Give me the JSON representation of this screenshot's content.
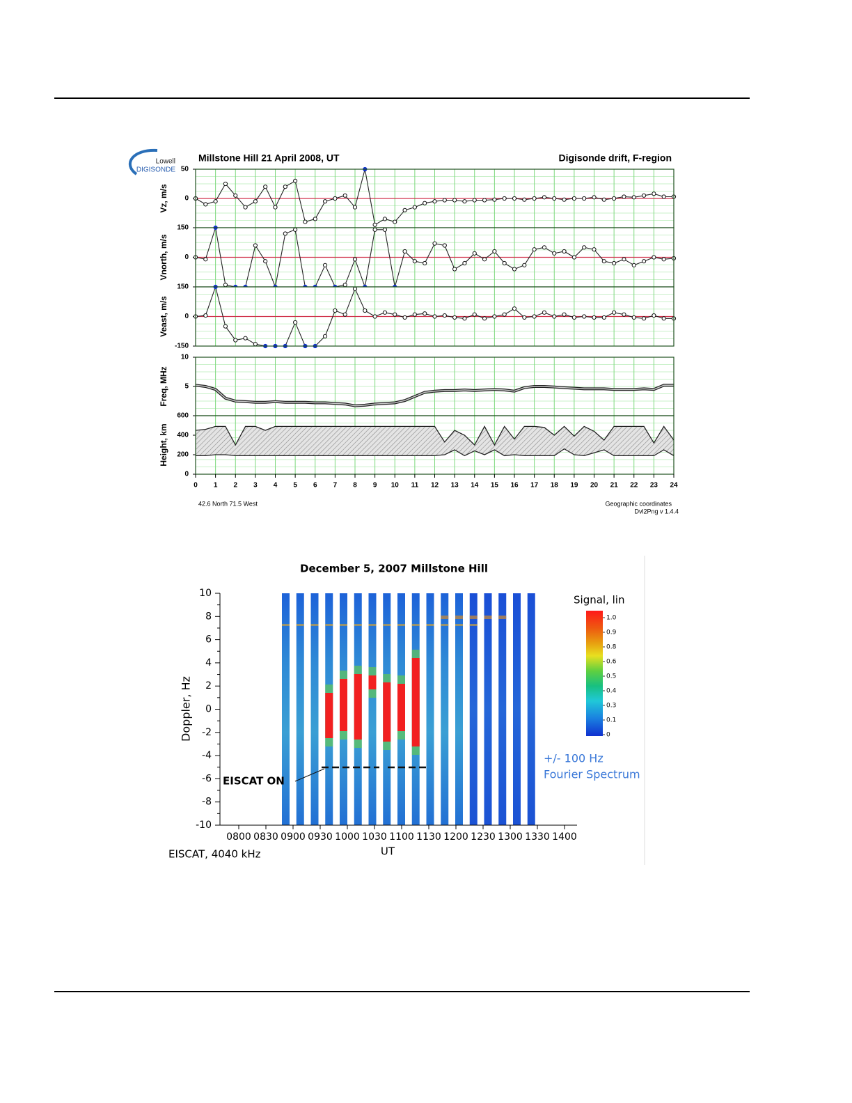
{
  "chart_data": [
    {
      "type": "multi-panel",
      "logo": {
        "top": "Lowell",
        "bottom": "DIGISONDE"
      },
      "title": "Millstone Hill  21 April 2008, UT",
      "subtitle": "Digisonde drift, F-region",
      "x": [
        0,
        0.5,
        1,
        1.5,
        2,
        2.5,
        3,
        3.5,
        4,
        4.5,
        5,
        5.5,
        6,
        6.5,
        7,
        7.5,
        8,
        8.5,
        9,
        9.5,
        10,
        10.5,
        11,
        11.5,
        12,
        12.5,
        13,
        13.5,
        14,
        14.5,
        15,
        15.5,
        16,
        16.5,
        17,
        17.5,
        18,
        18.5,
        19,
        19.5,
        20,
        20.5,
        21,
        21.5,
        22,
        22.5,
        23,
        23.5,
        24
      ],
      "xlim": [
        0,
        24
      ],
      "xticks": [
        0,
        1,
        2,
        3,
        4,
        5,
        6,
        7,
        8,
        9,
        10,
        11,
        12,
        13,
        14,
        15,
        16,
        17,
        18,
        19,
        20,
        21,
        22,
        23,
        24
      ],
      "grid": true,
      "panels": [
        {
          "type": "line",
          "markers": true,
          "ylabel": "Vz, m/s",
          "ylim": [
            -50,
            50
          ],
          "yticks": [
            50,
            0
          ],
          "values": [
            0,
            -10,
            -5,
            25,
            5,
            -15,
            -5,
            20,
            -15,
            20,
            30,
            -40,
            -35,
            -5,
            0,
            5,
            -15,
            50,
            -45,
            -35,
            -40,
            -20,
            -15,
            -8,
            -5,
            -3,
            -3,
            -5,
            -3,
            -3,
            -2,
            0,
            0,
            -2,
            0,
            2,
            0,
            -2,
            0,
            0,
            2,
            -2,
            0,
            3,
            2,
            5,
            8,
            3,
            3
          ]
        },
        {
          "type": "line",
          "markers": true,
          "ylabel": "Vnorth, m/s",
          "ylim": [
            -150,
            150
          ],
          "yticks": [
            150,
            0
          ],
          "values": [
            0,
            -10,
            150,
            -140,
            -150,
            -150,
            60,
            -20,
            -150,
            120,
            140,
            -150,
            -150,
            -40,
            -150,
            -140,
            -10,
            -150,
            140,
            140,
            -150,
            30,
            -20,
            -30,
            70,
            60,
            -60,
            -30,
            20,
            -10,
            30,
            -30,
            -60,
            -40,
            40,
            50,
            20,
            30,
            0,
            50,
            40,
            -20,
            -30,
            -10,
            -40,
            -20,
            0,
            -10,
            -5
          ]
        },
        {
          "type": "line",
          "markers": true,
          "ylabel": "Veast, m/s",
          "ylim": [
            -150,
            150
          ],
          "yticks": [
            150,
            0,
            -150
          ],
          "values": [
            0,
            5,
            150,
            -50,
            -120,
            -110,
            -140,
            -150,
            -150,
            -150,
            -30,
            -150,
            -150,
            -100,
            30,
            10,
            140,
            30,
            0,
            20,
            10,
            -5,
            10,
            15,
            0,
            5,
            -5,
            -10,
            10,
            -10,
            0,
            10,
            40,
            -5,
            0,
            20,
            0,
            10,
            -5,
            0,
            -5,
            -5,
            20,
            10,
            -5,
            -10,
            5,
            -10,
            -10
          ]
        },
        {
          "type": "line",
          "markers": false,
          "ylabel": "Freq, MHz",
          "ylim": [
            0,
            10
          ],
          "yticks": [
            10,
            5
          ],
          "values": [
            5.2,
            5,
            4.5,
            3,
            2.5,
            2.4,
            2.3,
            2.3,
            2.4,
            2.3,
            2.3,
            2.3,
            2.2,
            2.2,
            2.1,
            2,
            1.7,
            1.8,
            2,
            2.1,
            2.2,
            2.6,
            3.3,
            4,
            4.2,
            4.3,
            4.3,
            4.4,
            4.3,
            4.4,
            4.5,
            4.4,
            4.2,
            4.8,
            5,
            5,
            4.9,
            4.8,
            4.7,
            4.6,
            4.6,
            4.6,
            4.5,
            4.5,
            4.5,
            4.6,
            4.5,
            5.2,
            5.2
          ]
        },
        {
          "type": "band",
          "ylabel": "Height, km",
          "ylim": [
            0,
            600
          ],
          "yticks": [
            600,
            400,
            200,
            0
          ],
          "series": [
            {
              "values": [
                190,
                190,
                200,
                200,
                190,
                190,
                190,
                190,
                190,
                190,
                190,
                190,
                190,
                190,
                190,
                190,
                190,
                190,
                190,
                190,
                190,
                190,
                190,
                190,
                190,
                200,
                250,
                190,
                240,
                200,
                250,
                190,
                200,
                190,
                190,
                190,
                190,
                260,
                200,
                190,
                220,
                250,
                190,
                190,
                190,
                190,
                190,
                250,
                190
              ]
            },
            {
              "values": [
                450,
                460,
                490,
                490,
                300,
                490,
                490,
                450,
                490,
                490,
                490,
                490,
                490,
                490,
                490,
                490,
                490,
                490,
                490,
                490,
                490,
                490,
                490,
                490,
                490,
                330,
                450,
                400,
                300,
                490,
                300,
                490,
                360,
                490,
                490,
                480,
                400,
                490,
                390,
                490,
                440,
                350,
                490,
                490,
                490,
                490,
                320,
                490,
                350
              ]
            }
          ]
        }
      ],
      "footer_left": "42.6 North   71.5 West",
      "footer_right": [
        "Geographic coordinates",
        "Dvl2Png v 1.4.4"
      ]
    },
    {
      "type": "spectrogram",
      "title": "December 5, 2007 Millstone Hill",
      "ylabel": "Doppler, Hz",
      "xlabel": "UT",
      "ylim": [
        -10,
        10
      ],
      "yticks": [
        10,
        8,
        6,
        4,
        2,
        0,
        -2,
        -4,
        -6,
        -8,
        -10
      ],
      "xticks": [
        "0800",
        "0830",
        "0900",
        "0930",
        "1000",
        "1030",
        "1100",
        "1130",
        "1200",
        "1230",
        "1300",
        "1330",
        "1400"
      ],
      "colorbar": {
        "title": "Signal, lin",
        "ticks": [
          {
            "value": 1,
            "label": "1.0"
          },
          0.9,
          0.8,
          0.6,
          0.5,
          0.4,
          0.3,
          0.1,
          0
        ]
      },
      "annotations": {
        "marker": "EISCAT ON",
        "bandwidth": "+/- 100 Hz",
        "method": "Fourier Spectrum",
        "source": "EISCAT, 4040 kHz"
      }
    }
  ]
}
